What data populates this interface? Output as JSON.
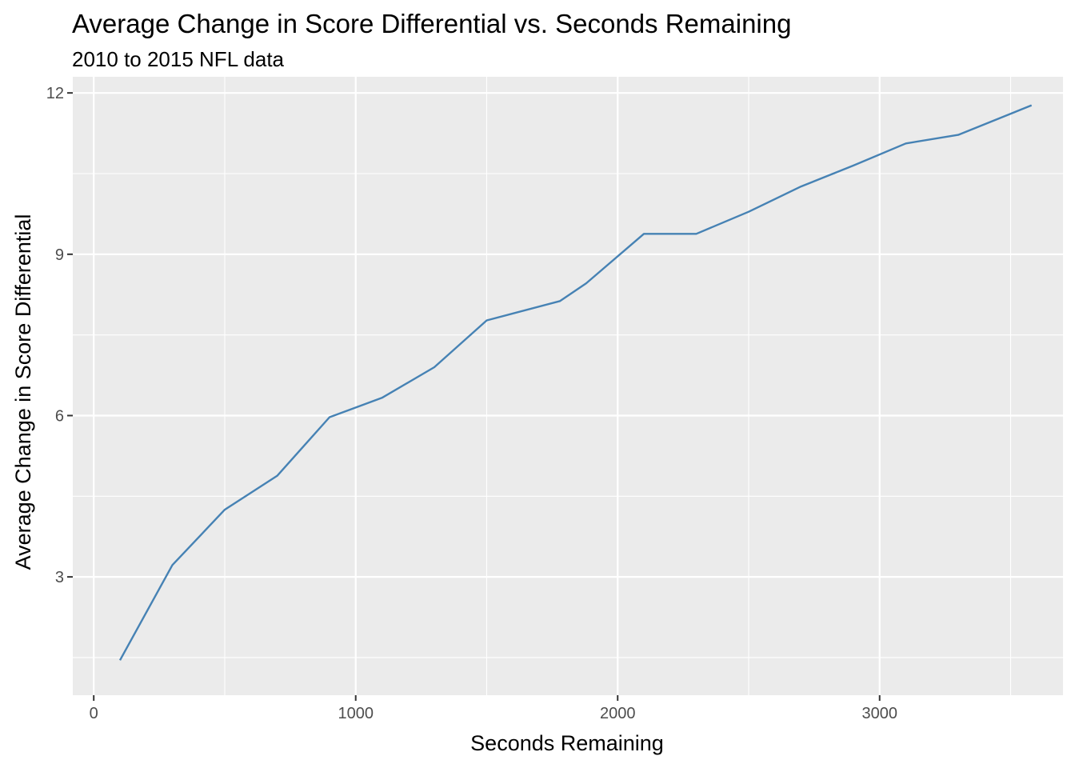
{
  "chart_data": {
    "type": "line",
    "title": "Average Change in Score Differential vs. Seconds Remaining",
    "subtitle": "2010 to 2015 NFL data",
    "xlabel": "Seconds Remaining",
    "ylabel": "Average Change in Score Differential",
    "xlim": [
      -80,
      3700
    ],
    "ylim": [
      0.8,
      12.3
    ],
    "x_ticks": [
      0,
      1000,
      2000,
      3000
    ],
    "y_ticks": [
      3,
      6,
      9,
      12
    ],
    "x_tick_labels": [
      "0",
      "1000",
      "2000",
      "3000"
    ],
    "y_tick_labels": [
      "3",
      "6",
      "9",
      "12"
    ],
    "grid": true,
    "colors": {
      "line": "#4682b4",
      "panel_background": "#ebebeb",
      "grid": "#ffffff"
    },
    "x": [
      100,
      300,
      500,
      700,
      900,
      1100,
      1300,
      1500,
      1780,
      1880,
      2100,
      2300,
      2500,
      2700,
      2900,
      3100,
      3300,
      3580
    ],
    "y": [
      1.45,
      3.22,
      4.25,
      4.88,
      5.97,
      6.33,
      6.9,
      7.77,
      8.13,
      8.46,
      9.38,
      9.38,
      9.79,
      10.26,
      10.65,
      11.06,
      11.22,
      11.77
    ]
  }
}
